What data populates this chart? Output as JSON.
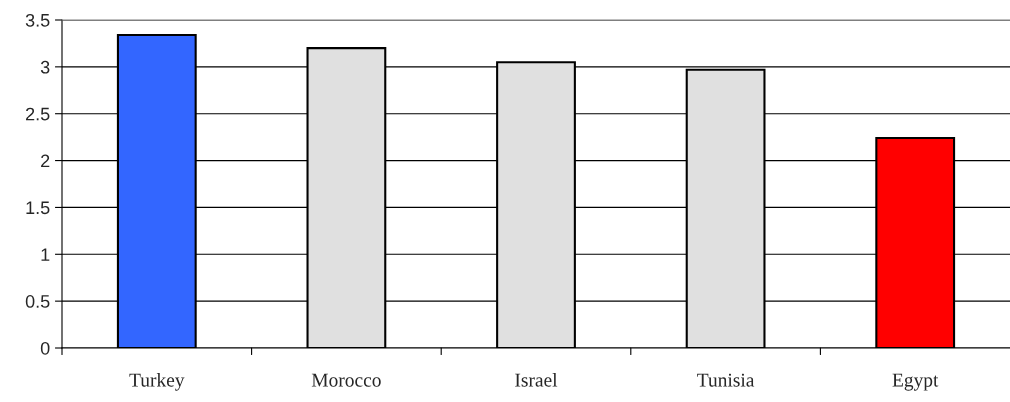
{
  "chart_data": {
    "type": "bar",
    "categories": [
      "Turkey",
      "Morocco",
      "Israel",
      "Tunisia",
      "Egypt"
    ],
    "values": [
      3.34,
      3.2,
      3.05,
      2.97,
      2.24
    ],
    "colors": [
      "#3366ff",
      "#e0e0e0",
      "#e0e0e0",
      "#e0e0e0",
      "#ff0000"
    ],
    "ylim": [
      0,
      3.5
    ],
    "yticks": [
      0,
      0.5,
      1,
      1.5,
      2,
      2.5,
      3,
      3.5
    ],
    "grid": "y"
  }
}
